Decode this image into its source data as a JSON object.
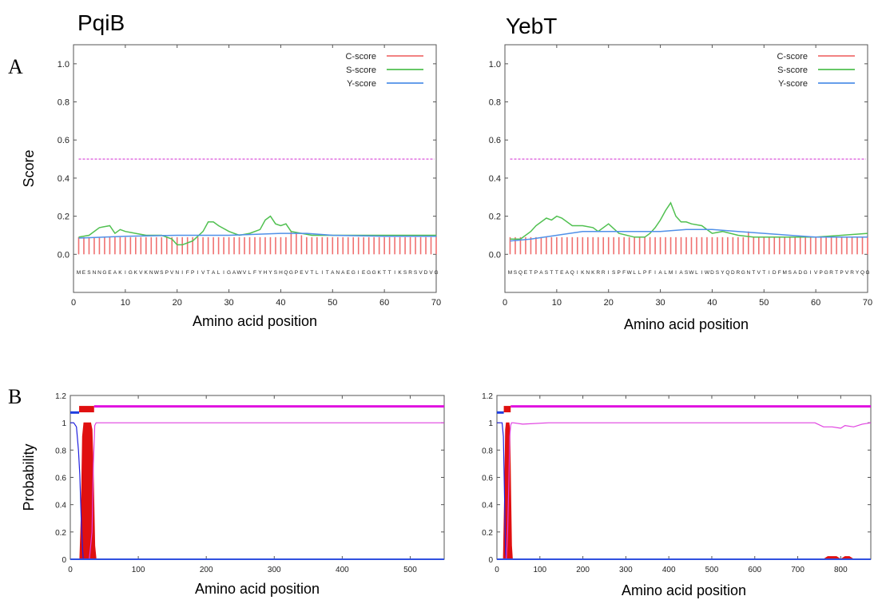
{
  "panel_labels": {
    "a": "A",
    "b": "B"
  },
  "protein_titles": [
    "PqiB",
    "YebT"
  ],
  "chart_data": [
    {
      "id": "signalp-pqib",
      "type": "line",
      "title": "PqiB",
      "xlabel": "Amino acid position",
      "ylabel": "Score",
      "xlim": [
        0,
        70
      ],
      "ylim": [
        -0.2,
        1.1
      ],
      "xticks": [
        0,
        10,
        20,
        30,
        40,
        50,
        60,
        70
      ],
      "yticks": [
        0.0,
        0.2,
        0.4,
        0.6,
        0.8,
        1.0
      ],
      "ytick_labels": [
        "0.0",
        "0.2",
        "0.4",
        "0.6",
        "0.8",
        "1.0"
      ],
      "legend": "top-right",
      "threshold": 0.5,
      "sequence": "MESNNGEAKIGKVKNWSPVNIFPIVTALIGAWVLFYHYSHQGPEVTLITANAEGIEGGKTTIKSRSVDVG",
      "series": [
        {
          "name": "C-score",
          "color": "#f07070",
          "x": [
            1,
            2,
            3,
            4,
            5,
            6,
            7,
            8,
            9,
            10,
            11,
            12,
            13,
            14,
            15,
            16,
            17,
            18,
            19,
            20,
            21,
            22,
            23,
            24,
            25,
            26,
            27,
            28,
            29,
            30,
            31,
            32,
            33,
            34,
            35,
            36,
            37,
            38,
            39,
            40,
            41,
            42,
            43,
            44,
            45,
            46,
            47,
            48,
            49,
            50,
            51,
            52,
            53,
            54,
            55,
            56,
            57,
            58,
            59,
            60,
            61,
            62,
            63,
            64,
            65,
            66,
            67,
            68,
            69,
            70
          ],
          "values": [
            0.09,
            0.09,
            0.09,
            0.09,
            0.09,
            0.09,
            0.09,
            0.09,
            0.09,
            0.09,
            0.09,
            0.09,
            0.09,
            0.09,
            0.09,
            0.09,
            0.09,
            0.09,
            0.09,
            0.09,
            0.09,
            0.09,
            0.09,
            0.09,
            0.09,
            0.09,
            0.09,
            0.09,
            0.09,
            0.09,
            0.09,
            0.09,
            0.09,
            0.09,
            0.09,
            0.09,
            0.09,
            0.09,
            0.09,
            0.09,
            0.09,
            0.12,
            0.11,
            0.1,
            0.09,
            0.09,
            0.09,
            0.09,
            0.09,
            0.09,
            0.09,
            0.09,
            0.09,
            0.09,
            0.09,
            0.09,
            0.09,
            0.09,
            0.09,
            0.09,
            0.09,
            0.09,
            0.09,
            0.09,
            0.09,
            0.09,
            0.09,
            0.09,
            0.09,
            0.09
          ]
        },
        {
          "name": "S-score",
          "color": "#50c050",
          "x": [
            1,
            3,
            5,
            7,
            8,
            9,
            10,
            12,
            14,
            17,
            19,
            20,
            21,
            22,
            23,
            25,
            26,
            27,
            28,
            30,
            32,
            34,
            36,
            37,
            38,
            39,
            40,
            41,
            42,
            44,
            46,
            50,
            55,
            60,
            65,
            70
          ],
          "values": [
            0.09,
            0.1,
            0.14,
            0.15,
            0.11,
            0.13,
            0.12,
            0.11,
            0.1,
            0.1,
            0.08,
            0.05,
            0.05,
            0.06,
            0.07,
            0.12,
            0.17,
            0.17,
            0.15,
            0.12,
            0.1,
            0.11,
            0.13,
            0.18,
            0.2,
            0.16,
            0.15,
            0.16,
            0.12,
            0.11,
            0.1,
            0.1,
            0.1,
            0.1,
            0.1,
            0.1
          ]
        },
        {
          "name": "Y-score",
          "color": "#5090e8",
          "x": [
            1,
            10,
            20,
            30,
            40,
            45,
            50,
            60,
            70
          ],
          "values": [
            0.085,
            0.095,
            0.1,
            0.1,
            0.11,
            0.11,
            0.1,
            0.095,
            0.095
          ]
        }
      ]
    },
    {
      "id": "signalp-yebt",
      "type": "line",
      "title": "YebT",
      "xlabel": "Amino acid position",
      "ylabel": "",
      "xlim": [
        0,
        70
      ],
      "ylim": [
        -0.2,
        1.1
      ],
      "xticks": [
        0,
        10,
        20,
        30,
        40,
        50,
        60,
        70
      ],
      "yticks": [
        0.0,
        0.2,
        0.4,
        0.6,
        0.8,
        1.0
      ],
      "ytick_labels": [
        "0.0",
        "0.2",
        "0.4",
        "0.6",
        "0.8",
        "1.0"
      ],
      "legend": "top-right",
      "threshold": 0.5,
      "sequence": "MSQETPASTTEAQIKNKRRISPFWLLPFIALMIASWLIWDSYQDRGNTVTIDFMSADGIVPGRTPVRYQG",
      "series": [
        {
          "name": "C-score",
          "color": "#f07070",
          "x": [
            1,
            2,
            3,
            4,
            5,
            6,
            7,
            8,
            9,
            10,
            11,
            12,
            13,
            14,
            15,
            16,
            17,
            18,
            19,
            20,
            21,
            22,
            23,
            24,
            25,
            26,
            27,
            28,
            29,
            30,
            31,
            32,
            33,
            34,
            35,
            36,
            37,
            38,
            39,
            40,
            41,
            42,
            43,
            44,
            45,
            46,
            47,
            48,
            49,
            50,
            51,
            52,
            53,
            54,
            55,
            56,
            57,
            58,
            59,
            60,
            61,
            62,
            63,
            64,
            65,
            66,
            67,
            68,
            69,
            70
          ],
          "values": [
            0.09,
            0.09,
            0.09,
            0.09,
            0.09,
            0.09,
            0.09,
            0.09,
            0.09,
            0.09,
            0.09,
            0.09,
            0.09,
            0.09,
            0.09,
            0.09,
            0.09,
            0.09,
            0.09,
            0.09,
            0.09,
            0.09,
            0.09,
            0.09,
            0.09,
            0.09,
            0.09,
            0.09,
            0.09,
            0.09,
            0.09,
            0.09,
            0.09,
            0.09,
            0.09,
            0.09,
            0.09,
            0.09,
            0.09,
            0.09,
            0.09,
            0.09,
            0.09,
            0.09,
            0.09,
            0.09,
            0.12,
            0.09,
            0.09,
            0.09,
            0.09,
            0.09,
            0.09,
            0.09,
            0.09,
            0.09,
            0.09,
            0.09,
            0.09,
            0.09,
            0.09,
            0.09,
            0.09,
            0.09,
            0.09,
            0.09,
            0.09,
            0.09,
            0.09,
            0.09
          ]
        },
        {
          "name": "S-score",
          "color": "#50c050",
          "x": [
            1,
            3,
            5,
            6,
            8,
            9,
            10,
            11,
            13,
            15,
            17,
            18,
            20,
            22,
            25,
            27,
            28,
            29,
            30,
            31,
            32,
            33,
            34,
            35,
            36,
            38,
            40,
            42,
            45,
            48,
            50,
            55,
            60,
            65,
            70
          ],
          "values": [
            0.08,
            0.08,
            0.12,
            0.15,
            0.19,
            0.18,
            0.2,
            0.19,
            0.15,
            0.15,
            0.14,
            0.12,
            0.16,
            0.11,
            0.09,
            0.09,
            0.11,
            0.14,
            0.18,
            0.23,
            0.27,
            0.2,
            0.17,
            0.17,
            0.16,
            0.15,
            0.11,
            0.12,
            0.1,
            0.09,
            0.09,
            0.09,
            0.09,
            0.1,
            0.11
          ]
        },
        {
          "name": "Y-score",
          "color": "#5090e8",
          "x": [
            1,
            5,
            10,
            15,
            20,
            25,
            30,
            35,
            40,
            45,
            50,
            55,
            60,
            65,
            70
          ],
          "values": [
            0.07,
            0.08,
            0.1,
            0.12,
            0.12,
            0.12,
            0.12,
            0.13,
            0.13,
            0.12,
            0.11,
            0.1,
            0.09,
            0.09,
            0.09
          ]
        }
      ]
    },
    {
      "id": "tmhmm-pqib",
      "type": "area",
      "xlabel": "Amino acid position",
      "ylabel": "Probability",
      "xlim": [
        0,
        550
      ],
      "ylim": [
        0,
        1.2
      ],
      "xticks": [
        0,
        100,
        200,
        300,
        400,
        500
      ],
      "yticks": [
        0,
        0.2,
        0.4,
        0.6,
        0.8,
        1,
        1.2
      ],
      "ytick_labels": [
        "0",
        "0.2",
        "0.4",
        "0.6",
        "0.8",
        "1",
        "1.2"
      ],
      "topology_bar": [
        {
          "region": "inside",
          "color": "#1f3fe0",
          "start": 0,
          "end": 13
        },
        {
          "region": "TMhelix",
          "color": "#e01010",
          "start": 13,
          "end": 35
        },
        {
          "region": "outside",
          "color": "#e010e0",
          "start": 35,
          "end": 550
        }
      ],
      "series": [
        {
          "name": "transmembrane",
          "color": "#e01010",
          "x": [
            0,
            14,
            16,
            18,
            20,
            22,
            24,
            26,
            28,
            30,
            32,
            34,
            36,
            38,
            550
          ],
          "values": [
            0,
            0,
            0.3,
            0.9,
            1.0,
            1.0,
            1.0,
            1.0,
            1.0,
            1.0,
            0.95,
            0.6,
            0.1,
            0,
            0
          ]
        },
        {
          "name": "inside",
          "color": "#2020e0",
          "x": [
            0,
            5,
            9,
            12,
            14,
            16,
            18,
            19,
            22,
            550
          ],
          "values": [
            1.0,
            1.0,
            0.97,
            0.8,
            0.62,
            0.3,
            0.08,
            0.0,
            0.0,
            0.0
          ]
        },
        {
          "name": "outside",
          "color": "#e040e0",
          "x": [
            0,
            24,
            28,
            32,
            34,
            36,
            38,
            40,
            550
          ],
          "values": [
            0,
            0,
            0,
            0.2,
            0.7,
            0.98,
            1.0,
            1.0,
            1.0
          ]
        }
      ]
    },
    {
      "id": "tmhmm-yebt",
      "type": "area",
      "xlabel": "Amino acid position",
      "ylabel": "",
      "xlim": [
        0,
        870
      ],
      "ylim": [
        0,
        1.2
      ],
      "xticks": [
        0,
        100,
        200,
        300,
        400,
        500,
        600,
        700,
        800
      ],
      "yticks": [
        0,
        0.2,
        0.4,
        0.6,
        0.8,
        1,
        1.2
      ],
      "ytick_labels": [
        "0",
        "0.2",
        "0.4",
        "0.6",
        "0.8",
        "1",
        "1.2"
      ],
      "topology_bar": [
        {
          "region": "inside",
          "color": "#1f3fe0",
          "start": 0,
          "end": 16
        },
        {
          "region": "TMhelix",
          "color": "#e01010",
          "start": 16,
          "end": 32
        },
        {
          "region": "outside",
          "color": "#e010e0",
          "start": 32,
          "end": 870
        }
      ],
      "series": [
        {
          "name": "transmembrane",
          "color": "#e01010",
          "x": [
            0,
            15,
            18,
            20,
            22,
            25,
            28,
            30,
            32,
            34,
            36,
            760,
            770,
            790,
            800,
            810,
            820,
            830,
            870
          ],
          "values": [
            0,
            0,
            0.5,
            0.95,
            1.0,
            1.0,
            1.0,
            0.95,
            0.5,
            0.1,
            0,
            0,
            0.02,
            0.02,
            0.0,
            0.02,
            0.02,
            0.0,
            0.0
          ]
        },
        {
          "name": "inside",
          "color": "#2020e0",
          "x": [
            0,
            12,
            15,
            18,
            20,
            22,
            870
          ],
          "values": [
            1.0,
            1.0,
            0.9,
            0.4,
            0.05,
            0.0,
            0.0
          ]
        },
        {
          "name": "outside",
          "color": "#e040e0",
          "x": [
            0,
            22,
            25,
            28,
            30,
            32,
            34,
            38,
            60,
            120,
            740,
            760,
            780,
            800,
            810,
            830,
            850,
            870
          ],
          "values": [
            0,
            0,
            0.2,
            0.6,
            0.9,
            0.98,
            1.0,
            1.0,
            0.99,
            1.0,
            1.0,
            0.97,
            0.97,
            0.96,
            0.98,
            0.97,
            0.99,
            1.0
          ]
        }
      ]
    }
  ]
}
